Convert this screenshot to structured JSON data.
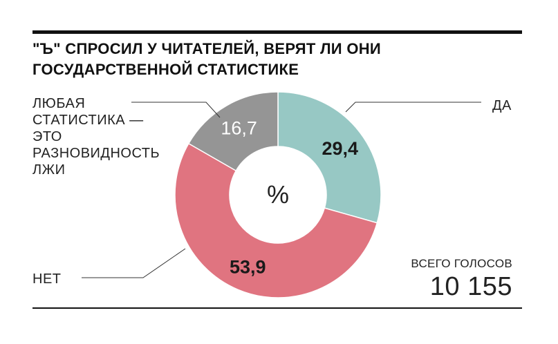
{
  "title_lines": [
    "\"Ъ\" СПРОСИЛ У ЧИТАТЕЛЕЙ, ВЕРЯТ ЛИ ОНИ",
    "ГОСУДАРСТВЕННОЙ СТАТИСТИКЕ"
  ],
  "center_unit": "%",
  "total": {
    "caption": "ВСЕГО ГОЛОСОВ",
    "value": "10 155"
  },
  "chart_data": {
    "type": "pie",
    "title": "\"Ъ\" СПРОСИЛ У ЧИТАТЕЛЕЙ, ВЕРЯТ ЛИ ОНИ ГОСУДАРСТВЕННОЙ СТАТИСТИКЕ",
    "unit": "%",
    "donut": true,
    "slices": [
      {
        "label_lines": [
          "ДА"
        ],
        "value": 29.4,
        "value_label": "29,4",
        "color": "#97c8c4"
      },
      {
        "label_lines": [
          "НЕТ"
        ],
        "value": 53.9,
        "value_label": "53,9",
        "color": "#e07480"
      },
      {
        "label_lines": [
          "ЛЮБАЯ",
          "СТАТИСТИКА —",
          "ЭТО",
          "РАЗНОВИДНОСТЬ",
          "ЛЖИ"
        ],
        "value": 16.7,
        "value_label": "16,7",
        "color": "#959595"
      }
    ]
  }
}
